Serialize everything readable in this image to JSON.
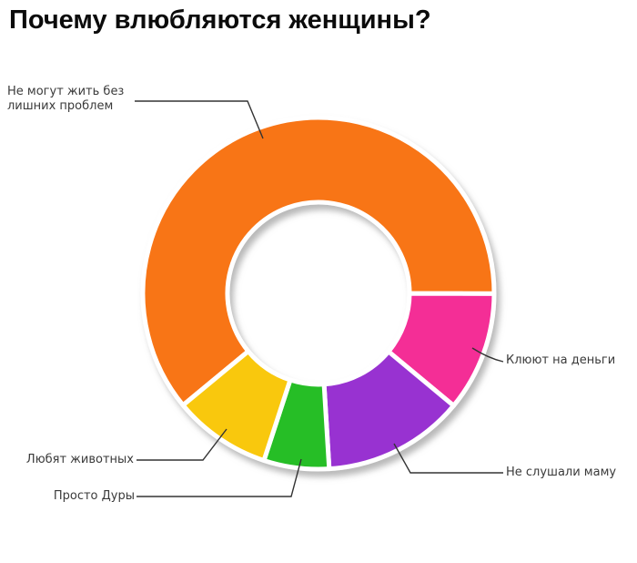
{
  "title": "Почему влюбляются женщины?",
  "chart_data": {
    "type": "pie",
    "subtype": "donut",
    "title": "Почему влюбляются женщины?",
    "unit": "percent_of_whole",
    "direction": "clockwise",
    "start_angle_deg": 140.5,
    "hole_ratio": 0.52,
    "grid": false,
    "legend_position": "callout-labels",
    "segments": [
      {
        "label": "Не могут жить без лишних проблем",
        "value": 61,
        "color": "#F87414"
      },
      {
        "label": "Клюют на деньги",
        "value": 11,
        "color": "#F42E96"
      },
      {
        "label": "Не слушали маму",
        "value": 13,
        "color": "#9833D1"
      },
      {
        "label": "Просто Дуры",
        "value": 6,
        "color": "#28BE26"
      },
      {
        "label": "Любят животных",
        "value": 9,
        "color": "#F9C80E"
      }
    ]
  },
  "style": {
    "background": "#ffffff",
    "segment_gap_color": "#ffffff",
    "leader_line_color": "#333333",
    "label_color": "#3a3a3a",
    "title_color": "#0b0b0b",
    "shadow_color": "#8a8a8a"
  }
}
